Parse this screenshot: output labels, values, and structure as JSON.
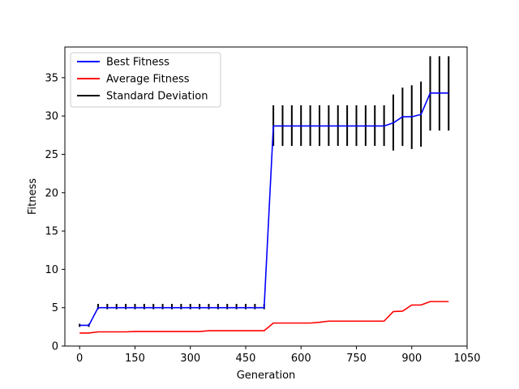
{
  "chart_data": {
    "type": "line",
    "title": "",
    "xlabel": "Generation",
    "ylabel": "Fitness",
    "xlim": [
      -40,
      1050
    ],
    "ylim": [
      0,
      39
    ],
    "x_ticks": [
      0,
      150,
      300,
      450,
      600,
      750,
      900,
      1050
    ],
    "y_ticks": [
      0,
      5,
      10,
      15,
      20,
      25,
      30,
      35
    ],
    "grid": false,
    "legend_position": "top-left",
    "x": [
      0,
      25,
      50,
      75,
      100,
      125,
      150,
      175,
      200,
      225,
      250,
      275,
      300,
      325,
      350,
      375,
      400,
      425,
      450,
      475,
      500,
      525,
      550,
      575,
      600,
      625,
      650,
      675,
      700,
      725,
      750,
      775,
      800,
      825,
      850,
      875,
      900,
      925,
      950,
      975,
      1000
    ],
    "series": [
      {
        "name": "Best Fitness",
        "color": "#0000ff",
        "values": [
          2.7,
          2.7,
          5.0,
          5.0,
          5.0,
          5.0,
          5.0,
          5.0,
          5.0,
          5.0,
          5.0,
          5.0,
          5.0,
          5.0,
          5.0,
          5.0,
          5.0,
          5.0,
          5.0,
          5.0,
          5.0,
          28.7,
          28.7,
          28.7,
          28.7,
          28.7,
          28.7,
          28.7,
          28.7,
          28.7,
          28.7,
          28.7,
          28.7,
          28.7,
          29.1,
          29.9,
          29.9,
          30.2,
          33.0,
          33.0,
          33.0
        ]
      },
      {
        "name": "Average Fitness",
        "color": "#ff0000",
        "values": [
          1.7,
          1.7,
          1.85,
          1.85,
          1.85,
          1.85,
          1.9,
          1.9,
          1.9,
          1.9,
          1.9,
          1.9,
          1.9,
          1.9,
          2.0,
          2.0,
          2.0,
          2.0,
          2.0,
          2.0,
          2.0,
          3.0,
          3.0,
          3.0,
          3.0,
          3.0,
          3.1,
          3.25,
          3.25,
          3.25,
          3.25,
          3.25,
          3.25,
          3.25,
          4.5,
          4.55,
          5.35,
          5.35,
          5.8,
          5.8,
          5.8
        ]
      }
    ],
    "error_bars": {
      "name": "Standard Deviation",
      "color": "#000000",
      "lower": [
        2.5,
        2.5,
        4.8,
        4.8,
        4.8,
        4.8,
        4.8,
        4.8,
        4.8,
        4.8,
        4.8,
        4.8,
        4.8,
        4.8,
        4.8,
        4.8,
        4.8,
        4.8,
        4.8,
        4.8,
        4.8,
        26.1,
        26.1,
        26.1,
        26.1,
        26.1,
        26.1,
        26.1,
        26.1,
        26.1,
        26.1,
        26.1,
        26.1,
        26.1,
        25.5,
        26.1,
        25.7,
        26.0,
        28.1,
        28.1,
        28.1
      ],
      "upper": [
        2.9,
        2.9,
        5.5,
        5.5,
        5.5,
        5.5,
        5.5,
        5.5,
        5.5,
        5.5,
        5.5,
        5.5,
        5.5,
        5.5,
        5.5,
        5.5,
        5.5,
        5.5,
        5.5,
        5.5,
        5.5,
        31.4,
        31.4,
        31.4,
        31.4,
        31.4,
        31.4,
        31.4,
        31.4,
        31.4,
        31.4,
        31.4,
        31.4,
        31.4,
        32.8,
        33.7,
        34.0,
        34.5,
        37.8,
        37.8,
        37.8
      ]
    }
  }
}
